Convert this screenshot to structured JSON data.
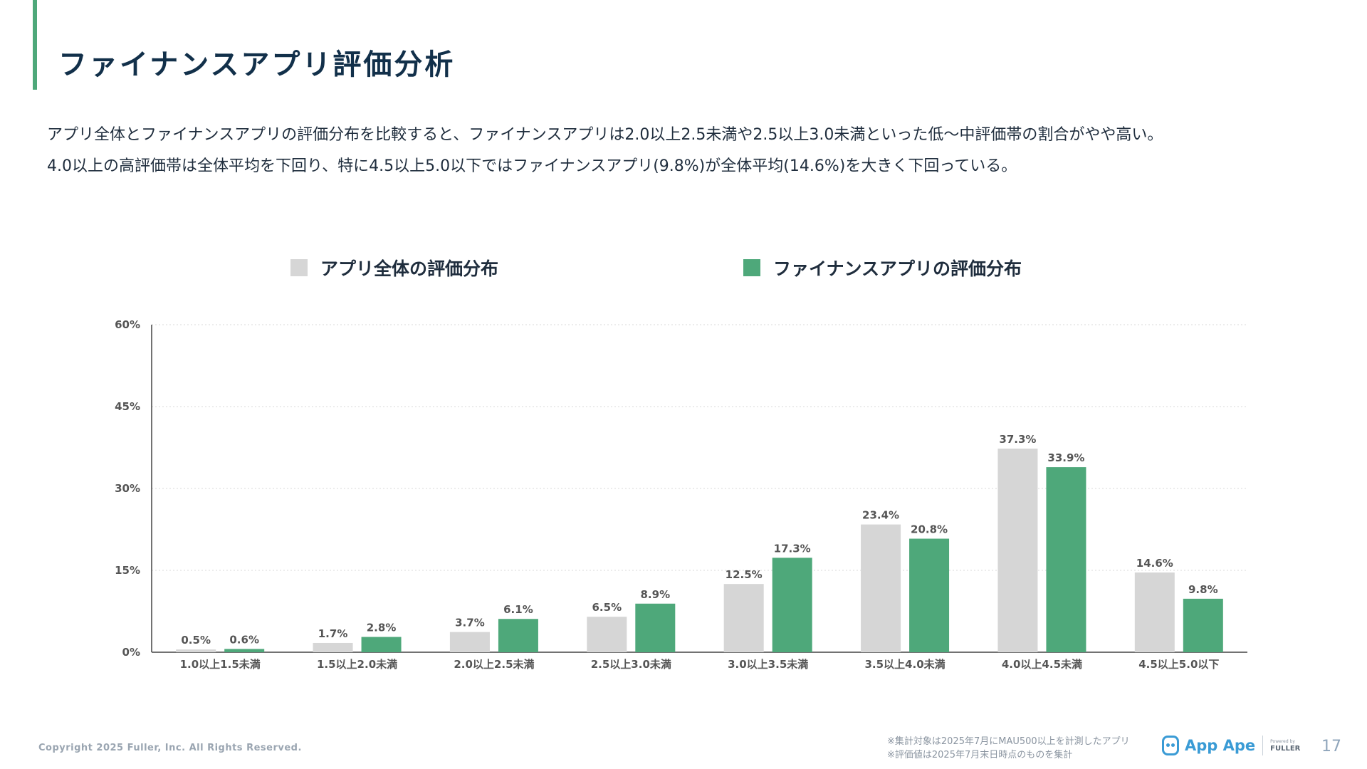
{
  "header": {
    "title": "ファイナンスアプリ評価分析"
  },
  "description": {
    "line1": "アプリ全体とファイナンスアプリの評価分布を比較すると、ファイナンスアプリは2.0以上2.5未満や2.5以上3.0未満といった低〜中評価帯の割合がやや高い。",
    "line2": "4.0以上の高評価帯は全体平均を下回り、特に4.5以上5.0以下ではファイナンスアプリ(9.8%)が全体平均(14.6%)を大きく下回っている。"
  },
  "colors": {
    "all": "#d6d6d6",
    "finance": "#4ea87a",
    "accent": "#4ea87a",
    "title": "#12304a"
  },
  "chart_data": {
    "type": "bar",
    "categories": [
      "1.0以上1.5未満",
      "1.5以上2.0未満",
      "2.0以上2.5未満",
      "2.5以上3.0未満",
      "3.0以上3.5未満",
      "3.5以上4.0未満",
      "4.0以上4.5未満",
      "4.5以上5.0以下"
    ],
    "series": [
      {
        "name": "アプリ全体の評価分布",
        "values": [
          0.5,
          1.7,
          3.7,
          6.5,
          12.5,
          23.4,
          37.3,
          14.6
        ],
        "labels": [
          "0.5%",
          "1.7%",
          "3.7%",
          "6.5%",
          "12.5%",
          "23.4%",
          "37.3%",
          "14.6%"
        ]
      },
      {
        "name": "ファイナンスアプリの評価分布",
        "values": [
          0.6,
          2.8,
          6.1,
          8.9,
          17.3,
          20.8,
          33.9,
          9.8
        ],
        "labels": [
          "0.6%",
          "2.8%",
          "6.1%",
          "8.9%",
          "17.3%",
          "20.8%",
          "33.9%",
          "9.8%"
        ]
      }
    ],
    "yticks": [
      0,
      15,
      30,
      45,
      60
    ],
    "ytick_labels": [
      "0%",
      "15%",
      "30%",
      "45%",
      "60%"
    ],
    "ylim": [
      0,
      60
    ],
    "grid": true,
    "legend": "top-center",
    "xlabel": "",
    "ylabel": ""
  },
  "footer": {
    "copyright": "Copyright 2025 Fuller, Inc. All Rights Reserved.",
    "note1": "※集計対象は2025年7月にMAU500以上を計測したアプリ",
    "note2": "※評価値は2025年7月末日時点のものを集計",
    "brand": "App Ape",
    "powered_by": "Powered by",
    "company": "FULLER",
    "page_number": "17"
  }
}
